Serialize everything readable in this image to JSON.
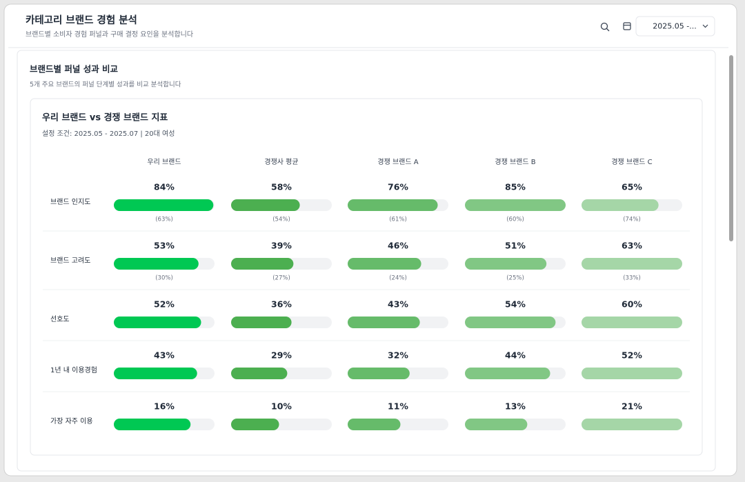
{
  "header": {
    "title": "카테고리 브랜드 경험 분석",
    "subtitle": "브랜드별 소비자 경험 퍼널과 구매 결정 요인을 분석합니다",
    "date_range": "2025.05 -..."
  },
  "section": {
    "title": "브랜드별 퍼널 성과 비교",
    "subtitle": "5개 주요 브랜드의 퍼널 단계별 성과를 비교 분석합니다"
  },
  "panel": {
    "title": "우리 브랜드 vs 경쟁 브랜드 지표",
    "condition": "설정 조건: 2025.05 - 2025.07 | 20대 여성"
  },
  "chart_data": {
    "type": "progress-table",
    "columns": [
      "우리 브랜드",
      "경쟁사 평균",
      "경쟁 브랜드 A",
      "경쟁 브랜드 B",
      "경쟁 브랜드 C"
    ],
    "colors": [
      "#00c853",
      "#4caf50",
      "#66bb6a",
      "#81c784",
      "#a5d6a7"
    ],
    "rows": [
      {
        "label": "브랜드 인지도",
        "values": [
          84,
          58,
          76,
          85,
          65
        ],
        "value_labels": [
          "84%",
          "58%",
          "76%",
          "85%",
          "65%"
        ],
        "sub_values": [
          63,
          54,
          61,
          60,
          74
        ],
        "sub_labels": [
          "(63%)",
          "(54%)",
          "(61%)",
          "(60%)",
          "(74%)"
        ]
      },
      {
        "label": "브랜드 고려도",
        "values": [
          53,
          39,
          46,
          51,
          63
        ],
        "value_labels": [
          "53%",
          "39%",
          "46%",
          "51%",
          "63%"
        ],
        "sub_values": [
          30,
          27,
          24,
          25,
          33
        ],
        "sub_labels": [
          "(30%)",
          "(27%)",
          "(24%)",
          "(25%)",
          "(33%)"
        ]
      },
      {
        "label": "선호도",
        "values": [
          52,
          36,
          43,
          54,
          60
        ],
        "value_labels": [
          "52%",
          "36%",
          "43%",
          "54%",
          "60%"
        ]
      },
      {
        "label": "1년 내 이용경험",
        "values": [
          43,
          29,
          32,
          44,
          52
        ],
        "value_labels": [
          "43%",
          "29%",
          "32%",
          "44%",
          "52%"
        ]
      },
      {
        "label": "가장 자주 이용",
        "values": [
          16,
          10,
          11,
          13,
          21
        ],
        "value_labels": [
          "16%",
          "10%",
          "11%",
          "13%",
          "21%"
        ]
      }
    ]
  }
}
